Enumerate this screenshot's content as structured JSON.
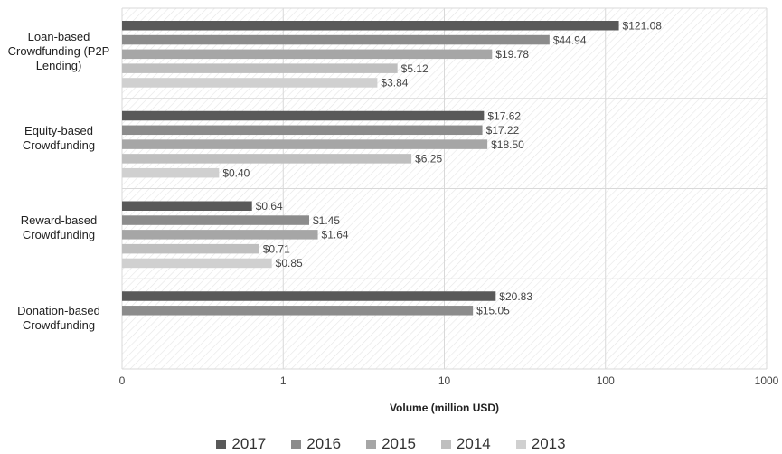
{
  "chart_data": {
    "type": "bar",
    "orientation": "horizontal",
    "x_scale": "log",
    "xlabel": "Volume (million USD)",
    "xlim": [
      0.1,
      1000
    ],
    "x_ticks": [
      "0",
      "1",
      "10",
      "100",
      "1000"
    ],
    "grid": true,
    "legend_position": "bottom",
    "categories": [
      "Loan-based\nCrowdfunding (P2P\nLending)",
      "Equity-based\nCrowdfunding",
      "Reward-based\nCrowdfunding",
      "Donation-based\nCrowdfunding"
    ],
    "series": [
      {
        "name": "2017",
        "color": "#595959",
        "values": [
          121.08,
          17.62,
          0.64,
          20.83
        ],
        "labels": [
          "$121.08",
          "$17.62",
          "$0.64",
          "$20.83"
        ]
      },
      {
        "name": "2016",
        "color": "#8c8c8c",
        "values": [
          44.94,
          17.22,
          1.45,
          15.05
        ],
        "labels": [
          "$44.94",
          "$17.22",
          "$1.45",
          "$15.05"
        ]
      },
      {
        "name": "2015",
        "color": "#a6a6a6",
        "values": [
          19.78,
          18.5,
          1.64,
          null
        ],
        "labels": [
          "$19.78",
          "$18.50",
          "$1.64",
          ""
        ]
      },
      {
        "name": "2014",
        "color": "#bfbfbf",
        "values": [
          5.12,
          6.25,
          0.71,
          null
        ],
        "labels": [
          "$5.12",
          "$6.25",
          "$0.71",
          ""
        ]
      },
      {
        "name": "2013",
        "color": "#d0d0d0",
        "values": [
          3.84,
          0.4,
          0.85,
          null
        ],
        "labels": [
          "$3.84",
          "$0.40",
          "$0.85",
          ""
        ]
      }
    ]
  }
}
